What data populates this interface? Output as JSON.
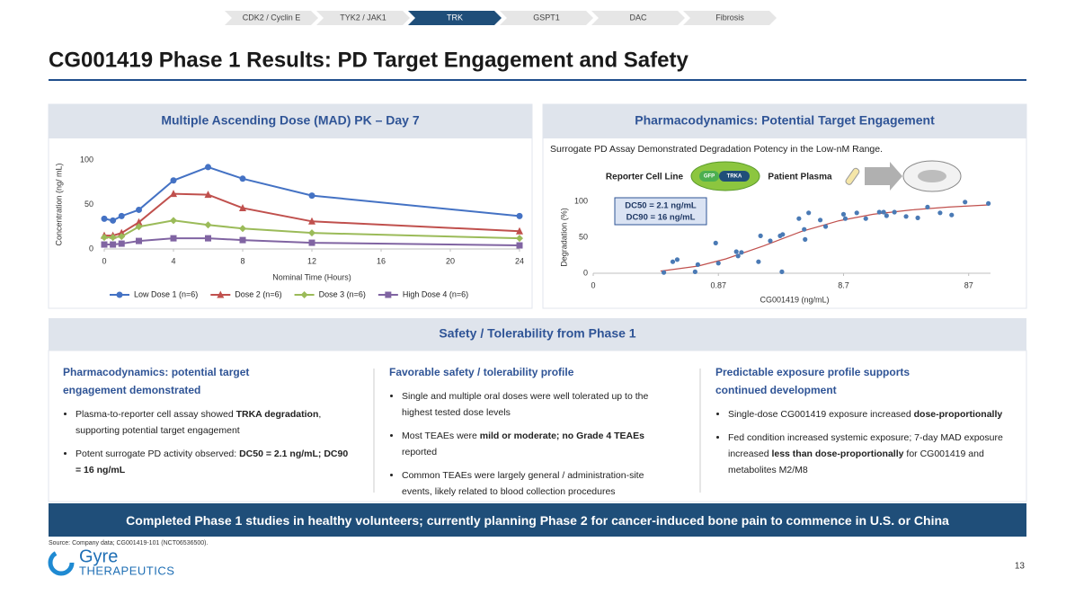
{
  "nav": [
    "CDK2 / Cyclin E",
    "TYK2 / JAK1",
    "TRK",
    "GSPT1",
    "DAC",
    "Fibrosis"
  ],
  "nav_active": 2,
  "title": "CG001419 Phase 1 Results: PD Target Engagement and Safety",
  "panels": {
    "pk_title": "Multiple Ascending Dose (MAD) PK – Day 7",
    "pd_title": "Pharmacodynamics: Potential Target Engagement",
    "pd_subtitle": "Surrogate PD Assay Demonstrated Degradation Potency in the Low-nM Range.",
    "diagram": {
      "reporter": "Reporter Cell Line",
      "gfp": "GFP",
      "trka": "TRKA",
      "plasma": "Patient Plasma"
    }
  },
  "chart_data": [
    {
      "type": "line",
      "x": [
        0,
        0.5,
        1,
        2,
        4,
        6,
        8,
        12,
        24
      ],
      "xlim": [
        0,
        24
      ],
      "xticks": [
        0,
        4,
        8,
        12,
        16,
        20,
        24
      ],
      "ylim": [
        0,
        100
      ],
      "yticks": [
        0,
        50,
        100
      ],
      "xlabel": "Nominal Time (Hours)",
      "ylabel": "Concentration (ng/ mL)",
      "legend": "bottom",
      "series": [
        {
          "name": "Low Dose 1 (n=6)",
          "color": "#4472c4",
          "marker": "circle",
          "values": [
            34,
            32,
            37,
            44,
            77,
            92,
            79,
            60,
            37
          ]
        },
        {
          "name": "Dose 2 (n=6)",
          "color": "#c0504d",
          "marker": "triangle",
          "values": [
            15,
            15,
            18,
            30,
            62,
            61,
            46,
            31,
            20
          ]
        },
        {
          "name": "Dose 3 (n=6)",
          "color": "#9bbb59",
          "marker": "diamond",
          "values": [
            13,
            13,
            14,
            25,
            32,
            27,
            23,
            18,
            12
          ]
        },
        {
          "name": "High Dose 4 (n=6)",
          "color": "#8064a2",
          "marker": "square",
          "values": [
            5,
            5,
            6,
            9,
            12,
            12,
            10,
            7,
            4
          ]
        }
      ]
    },
    {
      "type": "scatter",
      "xscale": "log",
      "x": [
        0.319,
        0.376,
        0.408,
        0.596,
        0.567,
        0.828,
        0.87,
        1.21,
        1.25,
        1.33,
        1.82,
        1.89,
        2.26,
        2.71,
        2.8,
        2.84,
        3.83,
        4.22,
        4.29,
        4.58,
        5.67,
        6.26,
        8.7,
        8.99,
        11.1,
        13.1,
        16.8,
        18.2,
        19.2,
        22.2,
        27.5,
        34.1,
        40.8,
        51.4,
        63.6,
        81.4,
        125
      ],
      "values": [
        1,
        16,
        19,
        12,
        2,
        42,
        14,
        30,
        24,
        29,
        16,
        52,
        45,
        52,
        2,
        54,
        76,
        61,
        47,
        84,
        74,
        65,
        82,
        76,
        84,
        76,
        85,
        85,
        80,
        85,
        79,
        77,
        92,
        84,
        81,
        99,
        97
      ],
      "color": "#4a7ab5",
      "fit": {
        "color": "#c0504d",
        "x": [
          0.3,
          0.6,
          1,
          2,
          4,
          8,
          15,
          30,
          60,
          125
        ],
        "values": [
          3,
          10,
          20,
          38,
          58,
          73,
          82,
          88,
          92,
          95
        ]
      },
      "xlim": [
        0.087,
        130
      ],
      "xticks": [
        {
          "value": 0.087,
          "label": "0"
        },
        0.87,
        8.7,
        87
      ],
      "ylim": [
        0,
        100
      ],
      "yticks": [
        0,
        50,
        100
      ],
      "xlabel": "CG001419 (ng/mL)",
      "ylabel": "Degradation (%)",
      "annotations": [
        "DC50 = 2.1 ng/mL",
        "DC90 = 16 ng/mL"
      ]
    }
  ],
  "safety": {
    "title": "Safety / Tolerability from Phase 1",
    "columns": [
      {
        "heading": "Pharmacodynamics: potential target engagement demonstrated",
        "bullets": [
          [
            "Plasma-to-reporter cell assay showed ",
            {
              "text": "TRKA degradation",
              "bold": true
            },
            ", supporting potential target engagement"
          ],
          [
            "Potent surrogate PD activity observed: ",
            {
              "text": "DC50 = 2.1 ng/mL; DC90 = 16 ng/mL",
              "bold": true
            }
          ]
        ]
      },
      {
        "heading": "Favorable safety / tolerability profile",
        "bullets": [
          [
            "Single and multiple oral doses were well tolerated up to the highest tested dose levels"
          ],
          [
            "Most TEAEs were ",
            {
              "text": "mild or moderate; no Grade 4 TEAEs",
              "bold": true
            },
            " reported"
          ],
          [
            "Common TEAEs were largely general / administration-site events, likely related to blood collection procedures"
          ]
        ]
      },
      {
        "heading": "Predictable exposure profile supports continued development",
        "bullets": [
          [
            "Single-dose CG001419 exposure increased ",
            {
              "text": "dose-proportionally",
              "bold": true
            }
          ],
          [
            "Fed condition increased systemic exposure; 7-day MAD exposure increased ",
            {
              "text": "less than dose-proportionally",
              "bold": true
            },
            " for CG001419 and metabolites M2/M8"
          ]
        ]
      }
    ]
  },
  "banner": "Completed Phase 1 studies in healthy volunteers; currently planning Phase 2 for cancer-induced bone pain to commence in U.S. or China",
  "source": "Source: Company data; CG001419-101 (NCT06536500).",
  "logo": {
    "name": "Gyre",
    "sub": "THERAPEUTICS"
  },
  "page_number": "13"
}
